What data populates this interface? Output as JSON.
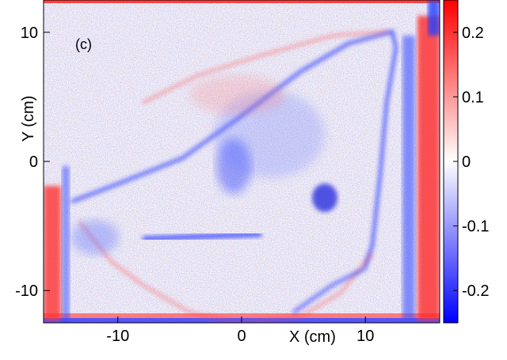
{
  "chart_data": {
    "type": "heatmap",
    "panel_label": "(c)",
    "xlabel": "X (cm)",
    "ylabel": "Y (cm)",
    "xlim": [
      -16,
      16
    ],
    "ylim": [
      -12.5,
      12.5
    ],
    "x_ticks": [
      -10,
      0,
      10
    ],
    "x_tick_labels": [
      "-10",
      "0",
      "10"
    ],
    "y_ticks": [
      10,
      0,
      -10
    ],
    "y_tick_labels": [
      "10",
      "0",
      "-10"
    ],
    "colorbar": {
      "range": [
        -0.25,
        0.25
      ],
      "ticks": [
        0.2,
        0.1,
        0,
        -0.1,
        -0.2
      ],
      "tick_labels": [
        "0.2",
        "0.1",
        "0",
        "-0.1",
        "-0.2"
      ],
      "colors": {
        "low": "#0000ff",
        "mid": "#ffffff",
        "high": "#ff0000"
      }
    },
    "grid": false
  }
}
